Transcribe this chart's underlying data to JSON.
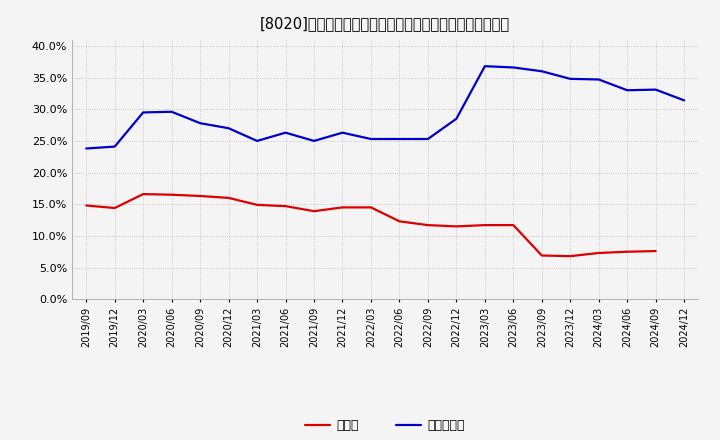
{
  "title": "[8020]　現頴金、有利子負債の総資産に対する比率の推移",
  "dates": [
    "2019/09",
    "2019/12",
    "2020/03",
    "2020/06",
    "2020/09",
    "2020/12",
    "2021/03",
    "2021/06",
    "2021/09",
    "2021/12",
    "2022/03",
    "2022/06",
    "2022/09",
    "2022/12",
    "2023/03",
    "2023/06",
    "2023/09",
    "2023/12",
    "2024/03",
    "2024/06",
    "2024/09",
    "2024/12"
  ],
  "cash": [
    0.148,
    0.144,
    0.166,
    0.165,
    0.163,
    0.16,
    0.149,
    0.147,
    0.139,
    0.145,
    0.145,
    0.123,
    0.117,
    0.115,
    0.117,
    0.117,
    0.069,
    0.068,
    0.073,
    0.075,
    0.076,
    null
  ],
  "debt": [
    0.238,
    0.241,
    0.295,
    0.296,
    0.278,
    0.27,
    0.25,
    0.263,
    0.25,
    0.263,
    0.253,
    0.253,
    0.253,
    0.285,
    0.368,
    0.366,
    0.36,
    0.348,
    0.347,
    0.33,
    0.331,
    0.314
  ],
  "cash_color": "#dd0000",
  "debt_color": "#0000cc",
  "bg_color": "#f4f4f4",
  "plot_bg_color": "#f4f4f4",
  "grid_color": "#bbbbbb",
  "ylim": [
    0.0,
    0.41
  ],
  "yticks": [
    0.0,
    0.05,
    0.1,
    0.15,
    0.2,
    0.25,
    0.3,
    0.35,
    0.4
  ],
  "legend_cash": "現頴金",
  "legend_debt": "有利子負債",
  "line_width": 1.6
}
